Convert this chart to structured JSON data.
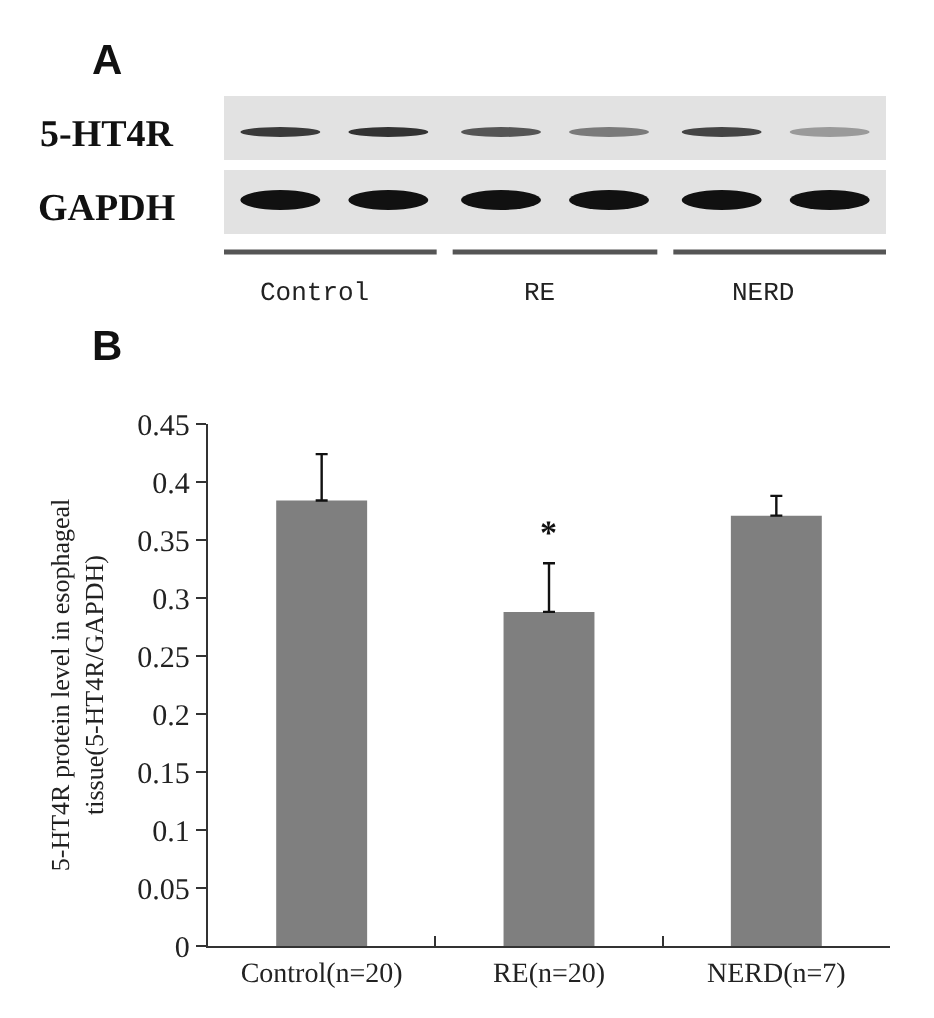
{
  "chart_data": [
    {
      "type": "other",
      "title": "A",
      "annotations": [
        "5-HT4R",
        "GAPDH",
        "Control",
        "RE",
        "NERD"
      ]
    },
    {
      "type": "bar",
      "title": "B",
      "categories": [
        "Control(n=20)",
        "RE(n=20)",
        "NERD(n=7)"
      ],
      "values": [
        0.384,
        0.288,
        0.371
      ],
      "color": "#7f7f7f",
      "errors": [
        [
          0.384,
          0.424
        ],
        [
          0.288,
          0.33
        ],
        [
          0.371,
          0.388
        ]
      ],
      "ylabel": "5-HT4R protein level in esophageal tissue(5-HT4R/GAPDH)",
      "ylim": [
        0,
        0.45
      ],
      "yticks": [
        0,
        0.05,
        0.1,
        0.15,
        0.2,
        0.25,
        0.3,
        0.35,
        0.4,
        0.45
      ],
      "annotations": [
        "*"
      ]
    }
  ]
}
